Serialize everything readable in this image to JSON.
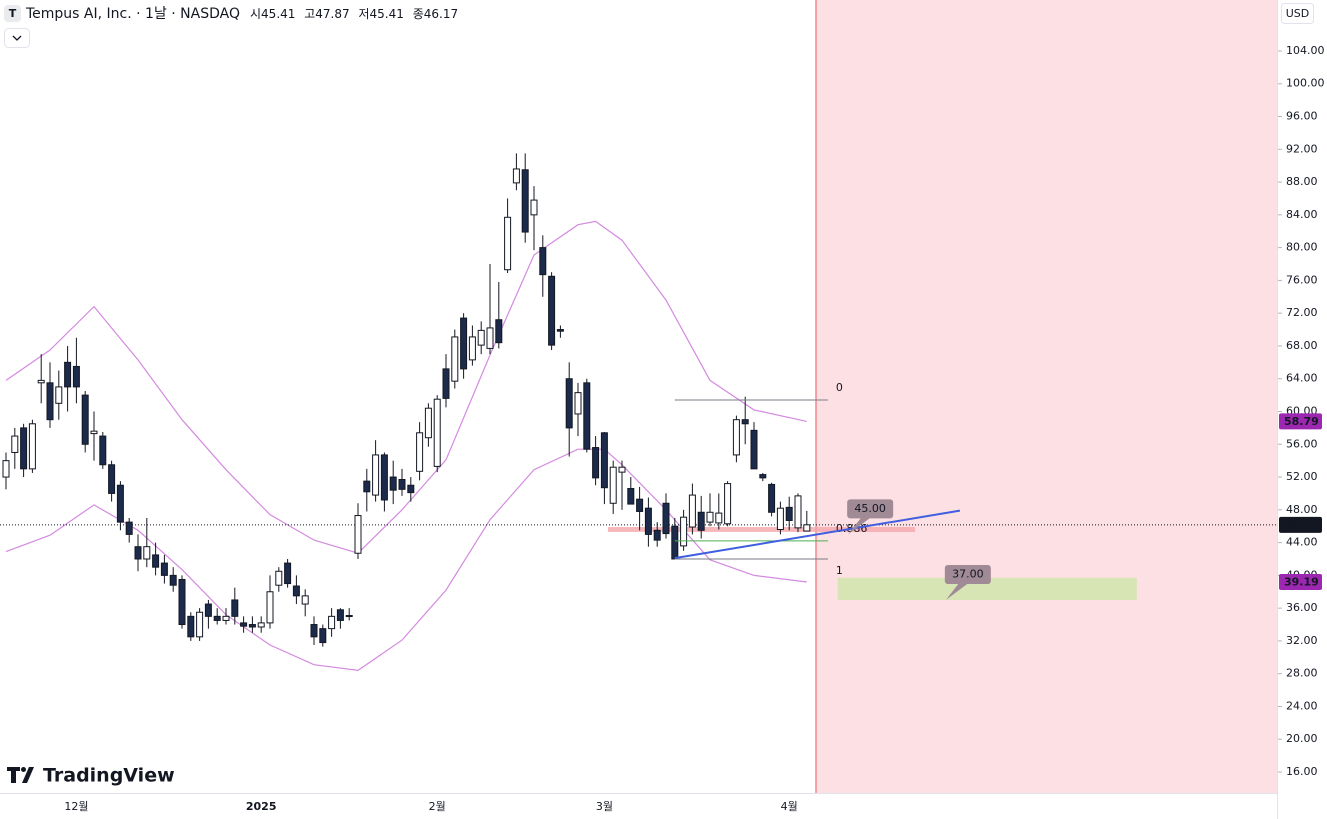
{
  "header": {
    "logo": "T",
    "title": "Tempus AI, Inc. · 1날 · NASDAQ",
    "ohlc_labels": [
      "시",
      "고",
      "저",
      "종"
    ],
    "currency": "USD",
    "watermark": "TradingView"
  },
  "chart_data": {
    "type": "candlestick",
    "categories": [
      null,
      null,
      null,
      null,
      null,
      null,
      null,
      null,
      "12월",
      null,
      null,
      null,
      null,
      null,
      null,
      null,
      null,
      null,
      null,
      null,
      null,
      null,
      null,
      null,
      null,
      null,
      null,
      null,
      null,
      "2025",
      null,
      null,
      null,
      null,
      null,
      null,
      null,
      null,
      null,
      null,
      null,
      null,
      null,
      null,
      null,
      null,
      null,
      null,
      null,
      "2월",
      null,
      null,
      null,
      null,
      null,
      null,
      null,
      null,
      null,
      null,
      null,
      null,
      null,
      null,
      null,
      null,
      null,
      null,
      "3월",
      null,
      null,
      null,
      null,
      null,
      null,
      null,
      null,
      null,
      null,
      null,
      null,
      null,
      null,
      null,
      null,
      null,
      null,
      null,
      null,
      "4월",
      null,
      null
    ],
    "open": [
      52,
      55,
      58,
      53,
      63.5,
      63.5,
      61,
      66,
      65.5,
      62,
      57.3,
      57,
      53.5,
      51,
      46.5,
      43.5,
      42,
      42.5,
      41.5,
      40,
      39.5,
      35,
      32.5,
      36.5,
      35,
      34.5,
      37,
      34.2,
      34,
      33.7,
      34.2,
      38.8,
      41.5,
      38.7,
      36.5,
      34,
      33.5,
      33.5,
      35.8,
      35.1,
      42.7,
      51.5,
      49.8,
      54.7,
      52,
      51.7,
      51,
      52.7,
      56.8,
      53.3,
      65.2,
      63.7,
      71.4,
      66.3,
      68.1,
      67.7,
      71.2,
      77.3,
      87.9,
      89.5,
      84,
      80,
      76.5,
      70,
      64,
      59.7,
      63.5,
      55.6,
      57.4,
      48.8,
      52.6,
      50.6,
      49.3,
      48.2,
      45.5,
      48.8,
      46,
      43.6,
      45.9,
      47.7,
      46.5,
      46.4,
      46.3,
      54.7,
      59,
      57.7,
      52.3,
      51.1,
      45.6,
      48.3,
      45.8,
      45.41
    ],
    "high": [
      55,
      58,
      58.5,
      59,
      67,
      66,
      65,
      68,
      69,
      62.5,
      60,
      57.5,
      54,
      51.5,
      47,
      45,
      47,
      44,
      42.5,
      41,
      40,
      35.5,
      36,
      37,
      36,
      36,
      38.5,
      35,
      35,
      35,
      40,
      41,
      42,
      40,
      38.3,
      35,
      34,
      36,
      36,
      36,
      48.8,
      53,
      56.5,
      55,
      54,
      53,
      52,
      58.7,
      61,
      62,
      67,
      70,
      72,
      70.5,
      71,
      78,
      75.8,
      86,
      91.5,
      91.5,
      87.5,
      81.5,
      77,
      70.5,
      66,
      63.5,
      64,
      57,
      57.5,
      54,
      54,
      52,
      50.8,
      49.5,
      46.5,
      50,
      47,
      48,
      51.2,
      49.7,
      50,
      50,
      51.5,
      59.5,
      61.8,
      58.7,
      52.5,
      51.3,
      49,
      49.6,
      50,
      47.87
    ],
    "low": [
      50.5,
      53,
      52,
      52.5,
      61,
      58,
      59,
      60,
      61,
      55,
      54,
      53,
      49,
      45.5,
      44,
      40.5,
      41,
      40,
      39,
      38,
      33.5,
      32,
      32,
      33.5,
      34,
      34,
      34,
      33,
      33,
      33,
      33.5,
      38,
      38.5,
      36.5,
      35,
      31.5,
      31.3,
      32.5,
      33.5,
      34.5,
      42,
      47.8,
      49,
      47.8,
      48.7,
      49.7,
      49,
      51.6,
      55.7,
      52.6,
      60.5,
      62.8,
      64,
      65.6,
      67,
      67,
      67.7,
      76.9,
      87,
      80.6,
      79.7,
      74,
      67.5,
      69,
      54.5,
      57,
      55,
      51,
      48.7,
      47.5,
      48,
      48.7,
      45.5,
      43.5,
      43.5,
      44.5,
      42,
      43,
      45,
      44.5,
      46,
      45.6,
      46,
      53.8,
      56,
      53,
      51.5,
      47.2,
      45,
      45.5,
      45.3,
      45.41
    ],
    "close": [
      54,
      57,
      53,
      58.5,
      63.8,
      59,
      63,
      63,
      63,
      56,
      57.6,
      53.5,
      50,
      46.5,
      45,
      42,
      43.5,
      41,
      40,
      38.8,
      34,
      32.5,
      35.5,
      35,
      34.5,
      35,
      35,
      33.8,
      33.7,
      34.2,
      38,
      40.5,
      39,
      37.5,
      37.5,
      32.5,
      31.8,
      35,
      34.5,
      35,
      47.3,
      50.2,
      54.7,
      49.2,
      50.4,
      50.5,
      50.1,
      57.4,
      60.4,
      61.5,
      61.6,
      69.1,
      65.2,
      69.1,
      69.9,
      70.2,
      68.4,
      83.7,
      89.6,
      81.9,
      85.8,
      76.7,
      68.1,
      69.8,
      58,
      62.3,
      55.4,
      51.9,
      50.7,
      53.2,
      53.2,
      48.7,
      47.8,
      45,
      44.3,
      45.1,
      42,
      47.1,
      49.8,
      45.5,
      47.7,
      47.6,
      51.2,
      59,
      58.5,
      53,
      51.9,
      47.7,
      48.2,
      46.7,
      49.7,
      46.17
    ],
    "up_color": "#ffffff",
    "down_color": "#1c2b4b",
    "border_color": "#131722",
    "bands": [
      {
        "color": "#d48ae0",
        "tag_color": "#9c27b0",
        "x": [
          0,
          5,
          10,
          15,
          20,
          25,
          30,
          35,
          40,
          45,
          50,
          55,
          60,
          65,
          67,
          70,
          75,
          80,
          85,
          91
        ],
        "values": [
          63.8,
          67.5,
          72.8,
          66.3,
          59,
          52.9,
          47.4,
          44.3,
          42.7,
          48,
          54.1,
          66.9,
          79.1,
          82.8,
          83.2,
          80.9,
          73.6,
          63.8,
          60.2,
          58.79
        ]
      },
      {
        "color": "#d48ae0",
        "tag_color": "#9c27b0",
        "x": [
          0,
          5,
          10,
          15,
          20,
          25,
          30,
          35,
          40,
          45,
          50,
          55,
          60,
          65,
          68,
          70,
          75,
          80,
          85,
          91
        ],
        "values": [
          42.9,
          44.9,
          48.6,
          45.5,
          40.7,
          35.2,
          31.5,
          29.1,
          28.4,
          32.1,
          38.2,
          46.8,
          52.9,
          55.4,
          55.4,
          53.5,
          48,
          41.9,
          40,
          39.19
        ]
      }
    ],
    "ylim": [
      13.44,
      110.22
    ],
    "yticks": [
      {
        "value": 16,
        "label": "16.00"
      },
      {
        "value": 20,
        "label": "20.00"
      },
      {
        "value": 24,
        "label": "24.00"
      },
      {
        "value": 28,
        "label": "28.00"
      },
      {
        "value": 32,
        "label": "32.00"
      },
      {
        "value": 36,
        "label": "36.00"
      },
      {
        "value": 40,
        "label": "40.00"
      },
      {
        "value": 44,
        "label": "44.00"
      },
      {
        "value": 48,
        "label": "48.00"
      },
      {
        "value": 52,
        "label": "52.00"
      },
      {
        "value": 56,
        "label": "56.00"
      },
      {
        "value": 60,
        "label": "60.00"
      },
      {
        "value": 64,
        "label": "64.00"
      },
      {
        "value": 68,
        "label": "68.00"
      },
      {
        "value": 72,
        "label": "72.00"
      },
      {
        "value": 76,
        "label": "76.00"
      },
      {
        "value": 80,
        "label": "80.00"
      },
      {
        "value": 84,
        "label": "84.00"
      },
      {
        "value": 88,
        "label": "88.00"
      },
      {
        "value": 92,
        "label": "92.00"
      },
      {
        "value": 96,
        "label": "96.00"
      },
      {
        "value": 100,
        "label": "100.00"
      },
      {
        "value": 104,
        "label": "104.00"
      }
    ],
    "grid": false,
    "fib": {
      "from": 61.4,
      "to": 42,
      "x": [
        76,
        93.4
      ],
      "levels": [
        0,
        0.886,
        1
      ],
      "colors": [
        "#787b86",
        "#4caf50",
        "#787b86"
      ]
    },
    "zone": {
      "prices": [
        45.3,
        45.9
      ],
      "x": [
        68.4,
        103.3
      ],
      "color": "#f4a6aa"
    },
    "target_box": {
      "prices": [
        37,
        39.7
      ],
      "x": [
        94.5,
        128.5
      ],
      "color": "#d7e4b4"
    },
    "trendline": {
      "x": [
        76,
        108.4
      ],
      "values": [
        42.1,
        47.9
      ],
      "color": "#3f5ee0"
    },
    "callouts": [
      {
        "value": 45,
        "label": "45.00",
        "x": 98.2
      },
      {
        "value": 37,
        "label": "37.00",
        "x": 109.3
      }
    ],
    "callout_color": "#a08a96"
  }
}
